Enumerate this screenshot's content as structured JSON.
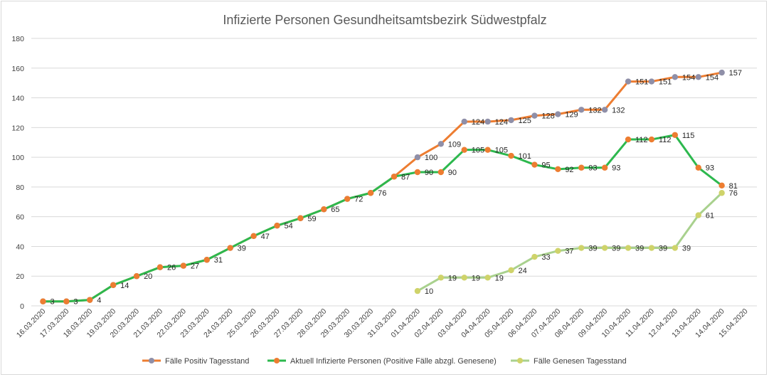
{
  "chart_data": {
    "type": "line",
    "title": "Infizierte Personen Gesundheitsamtsbezirk Südwestpfalz",
    "xlabel": "",
    "ylabel": "",
    "ylim": [
      0,
      180
    ],
    "yticks": [
      0,
      20,
      40,
      60,
      80,
      100,
      120,
      140,
      160,
      180
    ],
    "grid": true,
    "legend_position": "bottom",
    "categories": [
      "16.03.2020",
      "17.03.2020",
      "18.03.2020",
      "19.03.2020",
      "20.03.2020",
      "21.03.2020",
      "22.03.2020",
      "23.03.2020",
      "24.03.2020",
      "25.03.2020",
      "26.03.2020",
      "27.03.2020",
      "28.03.2020",
      "29.03.2020",
      "30.03.2020",
      "31.03.2020",
      "01.04.2020",
      "02.04.2020",
      "03.04.2020",
      "04.04.2020",
      "05.04.2020",
      "06.04.2020",
      "07.04.2020",
      "08.04.2020",
      "09.04.2020",
      "10.04.2020",
      "11.04.2020",
      "12.04.2020",
      "13.04.2020",
      "14.04.2020",
      "15.04.2020"
    ],
    "series": [
      {
        "name": "Fälle Positiv Tagesstand",
        "line_color": "#ed7d31",
        "marker_color": "#8f8fa8",
        "values": [
          3,
          3,
          4,
          14,
          20,
          26,
          27,
          31,
          39,
          47,
          54,
          59,
          65,
          72,
          76,
          87,
          100,
          109,
          124,
          124,
          125,
          128,
          129,
          132,
          132,
          151,
          151,
          154,
          154,
          157,
          null
        ],
        "labels_from_index": 16
      },
      {
        "name": "Aktuell Infizierte Personen (Positive Fälle abzgl. Genesene)",
        "line_color": "#2db84e",
        "marker_color": "#ed7d31",
        "values": [
          3,
          3,
          4,
          14,
          20,
          26,
          27,
          31,
          39,
          47,
          54,
          59,
          65,
          72,
          76,
          87,
          90,
          90,
          105,
          105,
          101,
          95,
          92,
          93,
          93,
          112,
          112,
          115,
          93,
          81,
          null
        ],
        "labels_from_index": 0
      },
      {
        "name": "Fälle Genesen Tagesstand",
        "line_color": "#a9d18e",
        "marker_color": "#cfd36a",
        "values": [
          null,
          null,
          null,
          null,
          null,
          null,
          null,
          null,
          null,
          null,
          null,
          null,
          null,
          null,
          null,
          null,
          10,
          19,
          19,
          19,
          24,
          33,
          37,
          39,
          39,
          39,
          39,
          39,
          61,
          76,
          null
        ],
        "labels_from_index": 16
      }
    ]
  }
}
